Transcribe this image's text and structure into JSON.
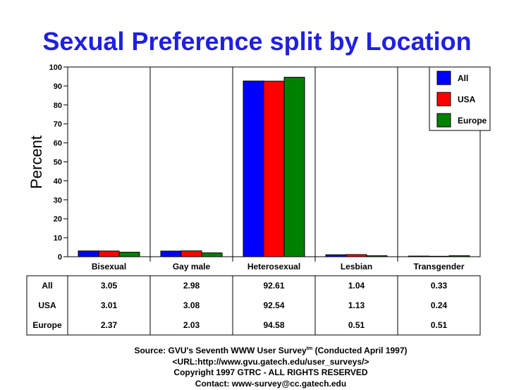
{
  "chart_data": {
    "type": "bar",
    "title": "Sexual Preference split by Location",
    "ylabel": "Percent",
    "xlabel": "",
    "ylim": [
      0,
      100
    ],
    "yticks": [
      0,
      10,
      20,
      30,
      40,
      50,
      60,
      70,
      80,
      90,
      100
    ],
    "categories": [
      "Bisexual",
      "Gay male",
      "Heterosexual",
      "Lesbian",
      "Transgender"
    ],
    "series": [
      {
        "name": "All",
        "color": "#0000ff",
        "values": [
          3.05,
          2.98,
          92.61,
          1.04,
          0.33
        ]
      },
      {
        "name": "USA",
        "color": "#ff0000",
        "values": [
          3.01,
          3.08,
          92.54,
          1.13,
          0.24
        ]
      },
      {
        "name": "Europe",
        "color": "#008000",
        "values": [
          2.37,
          2.03,
          94.58,
          0.51,
          0.51
        ]
      }
    ],
    "table": {
      "rows": [
        {
          "label": "All",
          "cells": [
            "3.05",
            "2.98",
            "92.61",
            "1.04",
            "0.33"
          ]
        },
        {
          "label": "USA",
          "cells": [
            "3.01",
            "3.08",
            "92.54",
            "1.13",
            "0.24"
          ]
        },
        {
          "label": "Europe",
          "cells": [
            "2.37",
            "2.03",
            "94.58",
            "0.51",
            "0.51"
          ]
        }
      ]
    },
    "legend_position": "top-right",
    "grid": "vertical-category-dividers"
  },
  "footer": {
    "source_prefix": "Source: GVU's Seventh WWW User Survey",
    "source_tm": "tm",
    "source_suffix": " (Conducted April 1997)",
    "url": "<URL:http://www.gvu.gatech.edu/user_surveys/>",
    "copyright": "Copyright 1997 GTRC - ALL RIGHTS RESERVED",
    "contact": "Contact: www-survey@cc.gatech.edu"
  }
}
